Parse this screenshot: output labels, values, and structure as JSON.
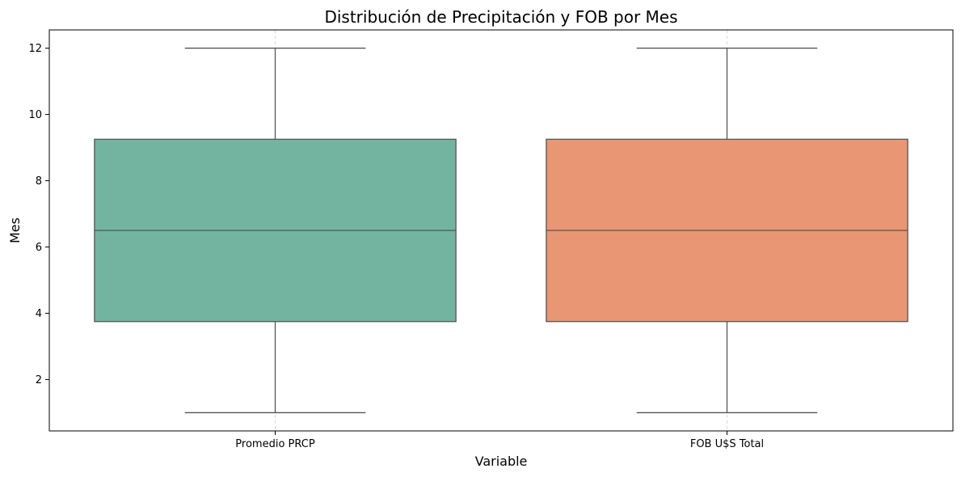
{
  "chart_data": {
    "type": "box",
    "title": "Distribución de Precipitación y FOB por Mes",
    "xlabel": "Variable",
    "ylabel": "Mes",
    "ylim": [
      0.45,
      12.55
    ],
    "yticks": [
      2,
      4,
      6,
      8,
      10,
      12
    ],
    "grid": "vertical dashed at categories",
    "categories": [
      "Promedio PRCP",
      "FOB U$S Total"
    ],
    "series": [
      {
        "category": "Promedio PRCP",
        "min": 1,
        "q1": 3.75,
        "median": 6.5,
        "q3": 9.25,
        "max": 12,
        "color": "#73b4a0"
      },
      {
        "category": "FOB U$S Total",
        "min": 1,
        "q1": 3.75,
        "median": 6.5,
        "q3": 9.25,
        "max": 12,
        "color": "#e99674"
      }
    ]
  }
}
